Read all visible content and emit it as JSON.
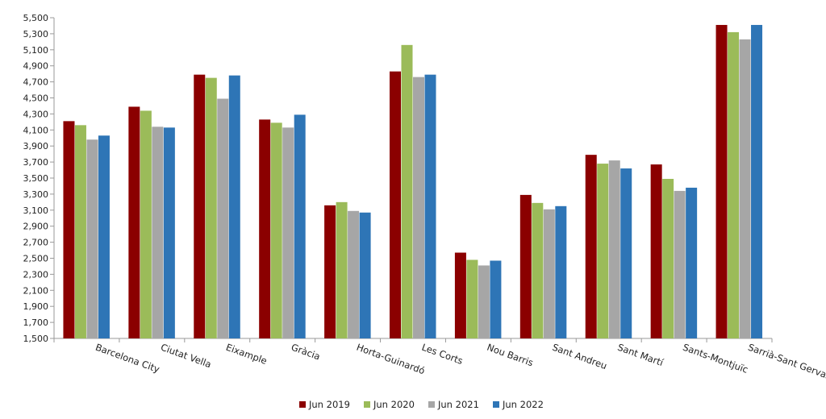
{
  "chart_data": {
    "type": "bar",
    "title": "",
    "xlabel": "",
    "ylabel": "",
    "ylim": [
      1500,
      5500
    ],
    "ytick_step": 200,
    "grid": false,
    "legend_position": "bottom",
    "categories": [
      "Barcelona City",
      "Ciutat Vella",
      "Eixample",
      "Gràcia",
      "Horta-Guinardó",
      "Les Corts",
      "Nou Barris",
      "Sant Andreu",
      "Sant Martí",
      "Sants-Montjuïc",
      "Sarrià-Sant Gervasi"
    ],
    "y_tick_labels": [
      "1,500",
      "1,700",
      "1,900",
      "2,100",
      "2,300",
      "2,500",
      "2,700",
      "2,900",
      "3,100",
      "3,300",
      "3,500",
      "3,700",
      "3,900",
      "4,100",
      "4,300",
      "4,500",
      "4,700",
      "4,900",
      "5,100",
      "5,300",
      "5,500"
    ],
    "series": [
      {
        "name": "Jun 2019",
        "color": "#8B0000",
        "values": [
          4210,
          4390,
          4790,
          4230,
          3160,
          4830,
          2570,
          3290,
          3790,
          3670,
          5410
        ]
      },
      {
        "name": "Jun 2020",
        "color": "#9BBB59",
        "values": [
          4160,
          4340,
          4750,
          4190,
          3200,
          5160,
          2480,
          3190,
          3680,
          3490,
          5320
        ]
      },
      {
        "name": "Jun 2021",
        "color": "#A6A6A6",
        "values": [
          3980,
          4140,
          4490,
          4130,
          3090,
          4760,
          2410,
          3110,
          3720,
          3340,
          5230
        ]
      },
      {
        "name": "Jun 2022",
        "color": "#2E75B6",
        "values": [
          4030,
          4130,
          4780,
          4290,
          3070,
          4790,
          2470,
          3150,
          3620,
          3380,
          5410
        ]
      }
    ]
  }
}
